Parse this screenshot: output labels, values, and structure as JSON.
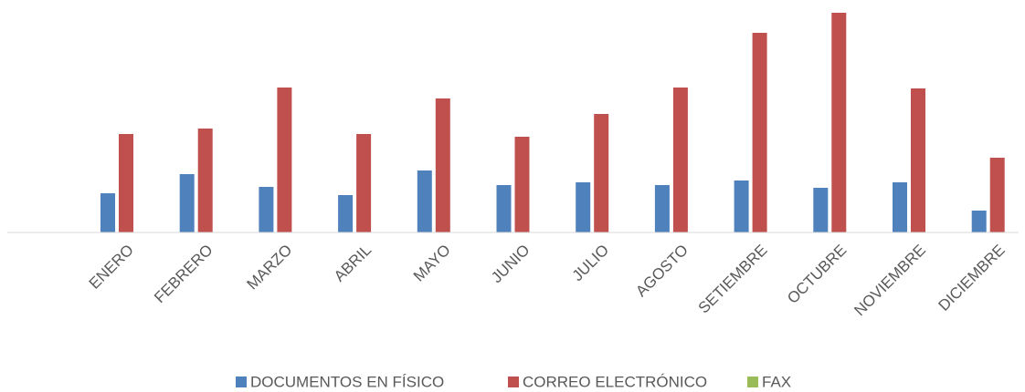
{
  "chart_data": {
    "type": "bar",
    "categories": [
      "ENERO",
      "FEBRERO",
      "MARZO",
      "ABRIL",
      "MAYO",
      "JUNIO",
      "JULIO",
      "AGOSTO",
      "SETIEMBRE",
      "OCTUBRE",
      "NOVIEMBRE",
      "DICIEMBRE"
    ],
    "series": [
      {
        "name": "DOCUMENTOS EN FÍSICO",
        "color": "#4f81bd",
        "values": [
          43,
          64,
          50,
          41,
          68,
          52,
          55,
          52,
          57,
          49,
          55,
          24
        ]
      },
      {
        "name": "CORREO ELECTRÓNICO",
        "color": "#c0504d",
        "values": [
          108,
          114,
          159,
          108,
          147,
          105,
          130,
          159,
          219,
          241,
          158,
          82
        ]
      },
      {
        "name": "FAX",
        "color": "#9bbb59",
        "values": [
          0,
          0,
          0,
          0,
          0,
          0,
          0,
          0,
          0,
          0,
          0,
          0
        ]
      }
    ],
    "ylim": [
      0,
      241
    ],
    "legend": "bottom"
  }
}
